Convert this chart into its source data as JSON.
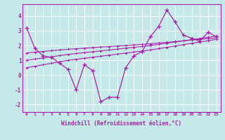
{
  "xlabel": "Windchill (Refroidissement éolien,°C)",
  "bg_color": "#c5e8e8",
  "line_color": "#aa22aa",
  "x_data": [
    0,
    1,
    2,
    3,
    4,
    5,
    6,
    7,
    8,
    9,
    10,
    11,
    12,
    13,
    14,
    15,
    16,
    17,
    18,
    19,
    20,
    21,
    22,
    23
  ],
  "y_line1": [
    3.2,
    1.8,
    1.3,
    1.2,
    0.8,
    0.4,
    -1.0,
    0.7,
    0.3,
    -1.8,
    -1.5,
    -1.5,
    0.5,
    1.3,
    1.6,
    2.6,
    3.3,
    4.4,
    3.6,
    2.7,
    2.5,
    2.3,
    2.9,
    2.6
  ],
  "y_trend1": [
    1.5,
    1.55,
    1.6,
    1.65,
    1.7,
    1.75,
    1.78,
    1.82,
    1.86,
    1.9,
    1.93,
    1.97,
    2.0,
    2.04,
    2.08,
    2.12,
    2.17,
    2.22,
    2.27,
    2.32,
    2.37,
    2.42,
    2.47,
    2.52
  ],
  "y_trend2": [
    0.5,
    0.6,
    0.7,
    0.8,
    0.9,
    1.0,
    1.07,
    1.14,
    1.21,
    1.28,
    1.35,
    1.42,
    1.49,
    1.56,
    1.63,
    1.7,
    1.79,
    1.88,
    1.97,
    2.06,
    2.15,
    2.24,
    2.33,
    2.42
  ],
  "y_trend3": [
    1.0,
    1.08,
    1.16,
    1.24,
    1.32,
    1.4,
    1.46,
    1.52,
    1.58,
    1.64,
    1.7,
    1.76,
    1.82,
    1.88,
    1.94,
    2.0,
    2.08,
    2.16,
    2.24,
    2.32,
    2.4,
    2.48,
    2.56,
    2.64
  ],
  "ylim": [
    -2.5,
    4.8
  ],
  "xlim": [
    -0.5,
    23.5
  ],
  "yticks": [
    -2,
    -1,
    0,
    1,
    2,
    3,
    4
  ],
  "xticks": [
    0,
    1,
    2,
    3,
    4,
    5,
    6,
    7,
    8,
    9,
    10,
    11,
    12,
    13,
    14,
    15,
    16,
    17,
    18,
    19,
    20,
    21,
    22,
    23
  ]
}
